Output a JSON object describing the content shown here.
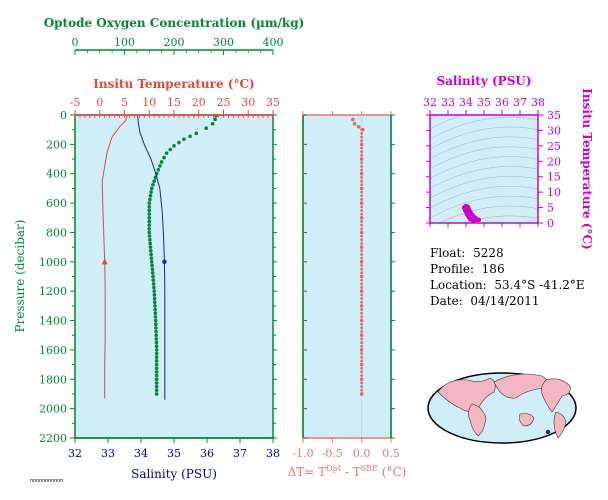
{
  "info": {
    "float_label": "Float:",
    "float_value": "5228",
    "profile_label": "Profile:",
    "profile_value": "186",
    "location_label": "Location:",
    "location_value": "53.4°S  -41.2°E",
    "date_label": "Date:",
    "date_value": "04/14/2011"
  },
  "tiny_text": "nnnnnnnnnnn",
  "colors": {
    "panel_bg": "#cfeef7",
    "green": "#008833",
    "red": "#e8453c",
    "blue": "#1a22c0",
    "salmon": "#f07070",
    "magenta": "#cc00cc",
    "pink": "#f06060",
    "navy": "#000099"
  },
  "chart_data": [
    {
      "type": "line",
      "title": "",
      "axes": {
        "oxygen": {
          "label": "Optode Oxygen Concentration (µm/kg)",
          "range": [
            0,
            400
          ],
          "ticks": [
            "0",
            "100",
            "200",
            "300",
            "400"
          ]
        },
        "temperature": {
          "label": "Insitu Temperature (°C)",
          "range": [
            -5,
            35
          ],
          "ticks": [
            "-5",
            "0",
            "5",
            "10",
            "15",
            "20",
            "25",
            "30",
            "35"
          ]
        },
        "salinity": {
          "label": "Salinity (PSU)",
          "range": [
            32,
            38
          ],
          "ticks": [
            "32",
            "33",
            "34",
            "35",
            "36",
            "37",
            "38"
          ]
        },
        "pressure": {
          "label": "Pressure (decibar)",
          "range": [
            0,
            2200
          ],
          "inverted": true,
          "ticks": [
            "0",
            "200",
            "400",
            "600",
            "800",
            "1000",
            "1200",
            "1400",
            "1600",
            "1800",
            "2000",
            "2200"
          ]
        }
      },
      "series": [
        {
          "name": "Optode Oxygen Concentration",
          "axis": "oxygen",
          "style": "dots",
          "points": [
            [
              285,
              5
            ],
            [
              283,
              30
            ],
            [
              278,
              60
            ],
            [
              265,
              90
            ],
            [
              245,
              125
            ],
            [
              220,
              165
            ],
            [
              200,
              210
            ],
            [
              185,
              260
            ],
            [
              175,
              320
            ],
            [
              165,
              400
            ],
            [
              155,
              500
            ],
            [
              150,
              600
            ],
            [
              150,
              800
            ],
            [
              155,
              1000
            ],
            [
              160,
              1200
            ],
            [
              163,
              1400
            ],
            [
              165,
              1600
            ],
            [
              165,
              1800
            ],
            [
              165,
              1900
            ]
          ]
        },
        {
          "name": "Insitu Temperature",
          "axis": "temperature",
          "style": "line",
          "marker_at_pressure": 1000,
          "points": [
            [
              5.5,
              5
            ],
            [
              5.2,
              40
            ],
            [
              4.0,
              80
            ],
            [
              2.5,
              150
            ],
            [
              1.5,
              250
            ],
            [
              1.0,
              350
            ],
            [
              0.5,
              450
            ],
            [
              0.6,
              600
            ],
            [
              0.8,
              800
            ],
            [
              1.0,
              1000
            ],
            [
              1.1,
              1200
            ],
            [
              1.1,
              1500
            ],
            [
              1.0,
              1700
            ],
            [
              1.0,
              1900
            ],
            [
              1.0,
              1930
            ]
          ]
        },
        {
          "name": "Salinity",
          "axis": "salinity",
          "style": "line",
          "marker_at_pressure": 1000,
          "points": [
            [
              33.9,
              5
            ],
            [
              33.92,
              60
            ],
            [
              33.97,
              120
            ],
            [
              34.1,
              200
            ],
            [
              34.3,
              300
            ],
            [
              34.45,
              400
            ],
            [
              34.57,
              500
            ],
            [
              34.64,
              650
            ],
            [
              34.68,
              800
            ],
            [
              34.71,
              1000
            ],
            [
              34.72,
              1200
            ],
            [
              34.72,
              1600
            ],
            [
              34.72,
              1940
            ]
          ]
        }
      ]
    },
    {
      "type": "scatter",
      "title": "",
      "axes": {
        "x": {
          "label": "ΔT= T^Opt - T^SBE (°C)",
          "range": [
            -1.0,
            0.5
          ],
          "ticks": [
            "-1.0",
            "-0.5",
            "0.0",
            "0.5"
          ]
        },
        "y": {
          "label": "",
          "range": [
            0,
            2200
          ],
          "inverted": true
        }
      },
      "series": [
        {
          "name": "ΔT",
          "points": [
            [
              -0.15,
              30
            ],
            [
              -0.12,
              60
            ],
            [
              -0.05,
              80
            ],
            [
              0.02,
              100
            ],
            [
              0.0,
              200
            ],
            [
              0.0,
              300
            ],
            [
              0.0,
              400
            ],
            [
              0.0,
              500
            ],
            [
              0.0,
              600
            ],
            [
              0.0,
              700
            ],
            [
              0.0,
              800
            ],
            [
              0.0,
              900
            ],
            [
              0.0,
              1000
            ],
            [
              0.0,
              1100
            ],
            [
              0.0,
              1200
            ],
            [
              0.0,
              1300
            ],
            [
              0.0,
              1400
            ],
            [
              0.0,
              1500
            ],
            [
              0.0,
              1600
            ],
            [
              0.0,
              1700
            ],
            [
              0.0,
              1800
            ],
            [
              0.0,
              1900
            ]
          ]
        }
      ]
    },
    {
      "type": "scatter",
      "title": "",
      "axes": {
        "x": {
          "label": "Salinity (PSU)",
          "range": [
            32,
            38
          ],
          "ticks": [
            "32",
            "33",
            "34",
            "35",
            "36",
            "37",
            "38"
          ]
        },
        "y": {
          "label": "Insitu Temperature (°C)",
          "range": [
            0,
            35
          ],
          "ticks": [
            "0",
            "5",
            "10",
            "15",
            "20",
            "25",
            "30",
            "35"
          ]
        }
      },
      "series": [
        {
          "name": "T-S",
          "points": [
            [
              34.72,
              1.0
            ],
            [
              34.6,
              1.1
            ],
            [
              34.5,
              1.0
            ],
            [
              34.4,
              0.8
            ],
            [
              34.25,
              1.2
            ],
            [
              34.15,
              2.0
            ],
            [
              34.05,
              3.0
            ],
            [
              33.95,
              4.2
            ],
            [
              33.9,
              5.0
            ],
            [
              34.0,
              5.5
            ],
            [
              34.1,
              5.2
            ],
            [
              34.2,
              4.0
            ],
            [
              34.35,
              2.5
            ],
            [
              34.55,
              1.5
            ]
          ]
        }
      ]
    }
  ]
}
